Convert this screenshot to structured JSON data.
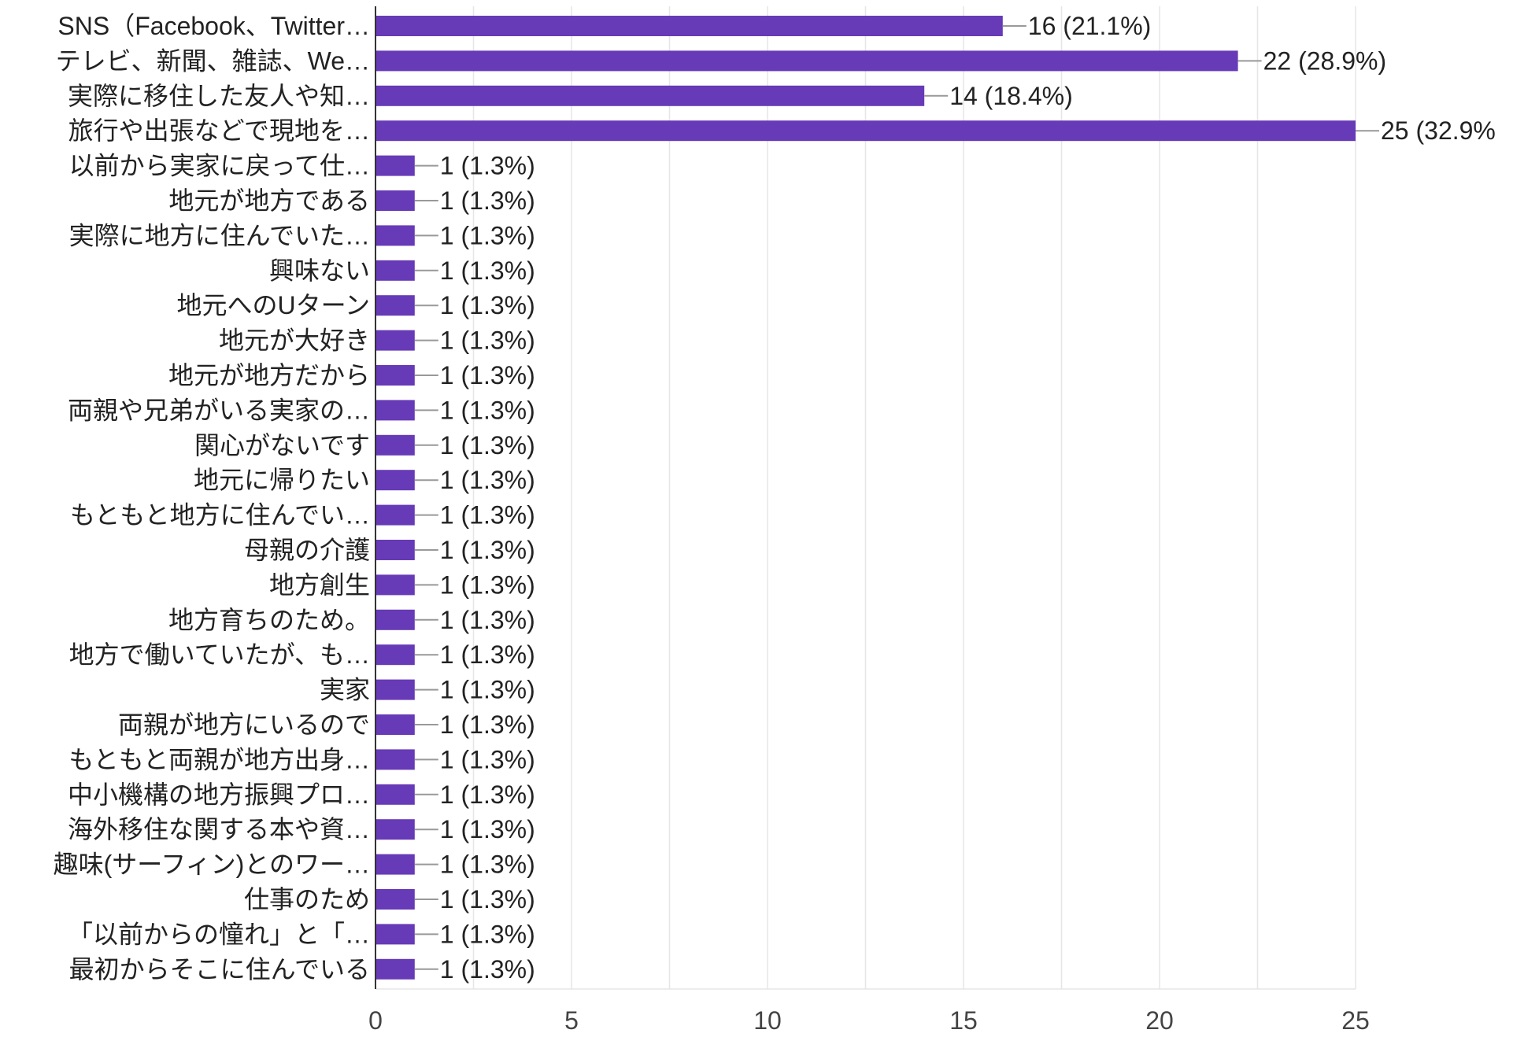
{
  "chart_data": {
    "type": "bar",
    "orientation": "horizontal",
    "categories": [
      "SNS（Facebook、Twitter…",
      "テレビ、新聞、雑誌、We…",
      "実際に移住した友人や知…",
      "旅行や出張などで現地を…",
      "以前から実家に戻って仕…",
      "地元が地方である",
      "実際に地方に住んでいた…",
      "興味ない",
      "地元へのUターン",
      "地元が大好き",
      "地元が地方だから",
      "両親や兄弟がいる実家の…",
      "関心がないです",
      "地元に帰りたい",
      "もともと地方に住んでい…",
      "母親の介護",
      "地方創生",
      "地方育ちのため。",
      "地方で働いていたが、も…",
      "実家",
      "両親が地方にいるので",
      "もともと両親が地方出身…",
      "中小機構の地方振興プロ…",
      "海外移住な関する本や資…",
      "趣味(サーフィン)とのワー…",
      "仕事のため",
      "「以前からの憧れ」と「…",
      "最初からそこに住んでいる"
    ],
    "values": [
      16,
      22,
      14,
      25,
      1,
      1,
      1,
      1,
      1,
      1,
      1,
      1,
      1,
      1,
      1,
      1,
      1,
      1,
      1,
      1,
      1,
      1,
      1,
      1,
      1,
      1,
      1,
      1
    ],
    "value_labels": [
      "16 (21.1%)",
      "22 (28.9%)",
      "14 (18.4%)",
      "25 (32.9%",
      "1 (1.3%)",
      "1 (1.3%)",
      "1 (1.3%)",
      "1 (1.3%)",
      "1 (1.3%)",
      "1 (1.3%)",
      "1 (1.3%)",
      "1 (1.3%)",
      "1 (1.3%)",
      "1 (1.3%)",
      "1 (1.3%)",
      "1 (1.3%)",
      "1 (1.3%)",
      "1 (1.3%)",
      "1 (1.3%)",
      "1 (1.3%)",
      "1 (1.3%)",
      "1 (1.3%)",
      "1 (1.3%)",
      "1 (1.3%)",
      "1 (1.3%)",
      "1 (1.3%)",
      "1 (1.3%)",
      "1 (1.3%)"
    ],
    "xlim": [
      0,
      25
    ],
    "x_ticks": [
      0,
      5,
      10,
      15,
      20,
      25
    ],
    "grid": true,
    "bar_color": "#673ab7",
    "title": "",
    "xlabel": "",
    "ylabel": ""
  }
}
